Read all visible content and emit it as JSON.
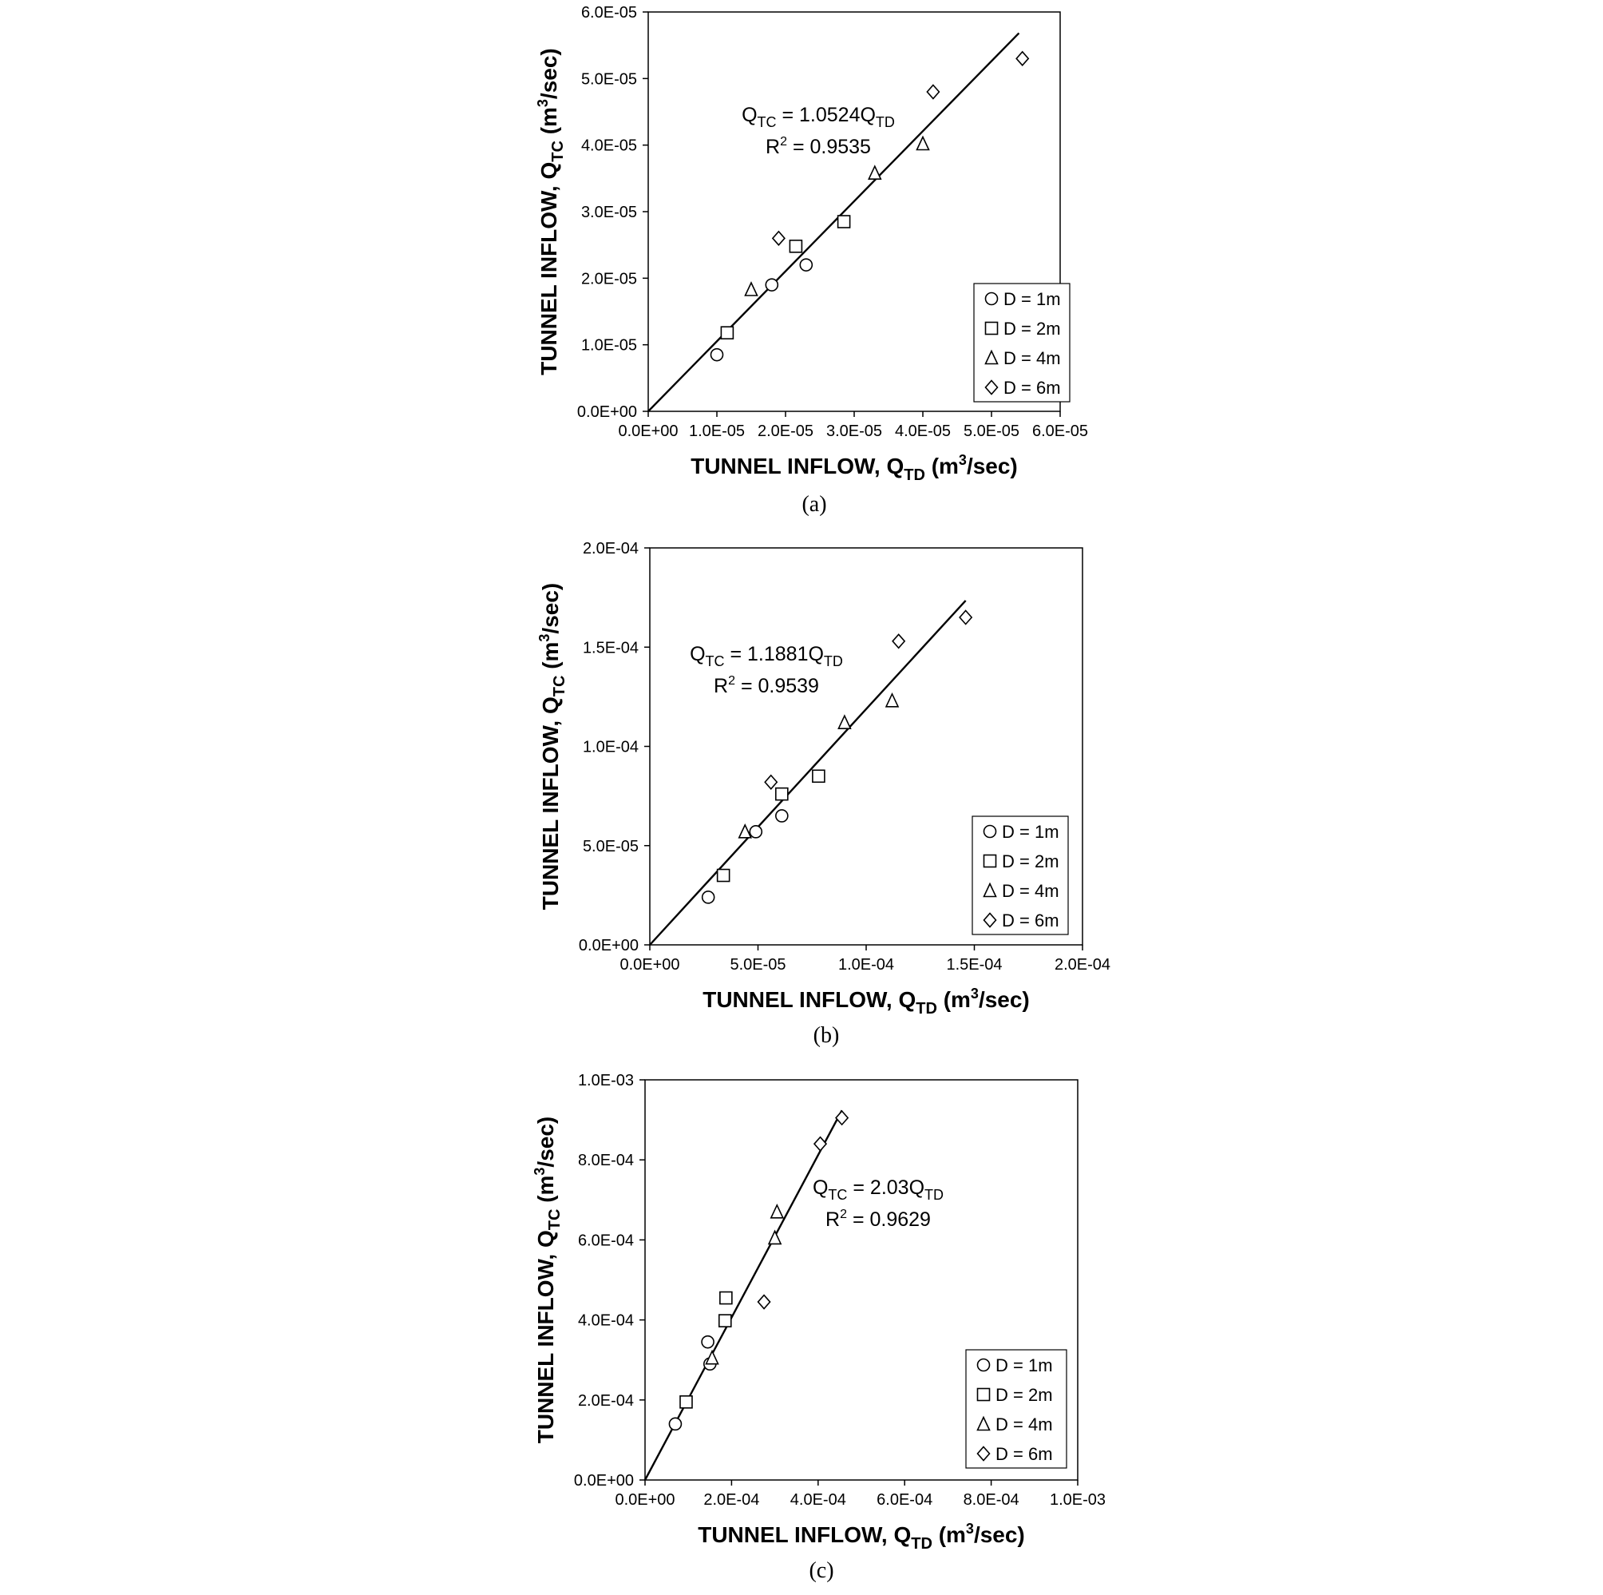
{
  "figure": {
    "legend_labels": [
      "D = 1m",
      "D = 2m",
      "D = 4m",
      "D = 6m"
    ],
    "marker_shapes": [
      "circle",
      "square",
      "triangle",
      "diamond"
    ]
  },
  "chart_data": [
    {
      "type": "scatter",
      "caption": "(a)",
      "xlabel": "TUNNEL INFLOW, Q_TD (m³/sec)",
      "xlabel_parts": {
        "pre": "TUNNEL INFLOW, Q",
        "sub": "TD",
        "post": " (m",
        "sup": "3",
        "end": "/sec)"
      },
      "ylabel": "TUNNEL INFLOW, Q_TC (m³/sec)",
      "ylabel_parts": {
        "pre": "TUNNEL INFLOW, Q",
        "sub": "TC",
        "post": " (m",
        "sup": "3",
        "end": "/sec)"
      },
      "xlim": [
        0,
        6e-05
      ],
      "ylim": [
        0,
        6e-05
      ],
      "xticks": [
        0,
        1e-05,
        2e-05,
        3e-05,
        4e-05,
        5e-05,
        6e-05
      ],
      "xtick_labels": [
        "0.0E+00",
        "1.0E-05",
        "2.0E-05",
        "3.0E-05",
        "4.0E-05",
        "5.0E-05",
        "6.0E-05"
      ],
      "yticks": [
        0,
        1e-05,
        2e-05,
        3e-05,
        4e-05,
        5e-05,
        6e-05
      ],
      "ytick_labels": [
        "0.0E+00",
        "1.0E-05",
        "2.0E-05",
        "3.0E-05",
        "4.0E-05",
        "5.0E-05",
        "6.0E-05"
      ],
      "grid": false,
      "legend_position": "bottom-right",
      "series": [
        {
          "name": "D = 1m",
          "marker": "circle",
          "x": [
            1e-05,
            1.8e-05,
            2.3e-05
          ],
          "y": [
            8.5e-06,
            1.9e-05,
            2.2e-05
          ]
        },
        {
          "name": "D = 2m",
          "marker": "square",
          "x": [
            1.15e-05,
            2.15e-05,
            2.85e-05
          ],
          "y": [
            1.18e-05,
            2.48e-05,
            2.85e-05
          ]
        },
        {
          "name": "D = 4m",
          "marker": "triangle",
          "x": [
            1.5e-05,
            3.3e-05,
            4e-05
          ],
          "y": [
            1.83e-05,
            3.58e-05,
            4.02e-05
          ]
        },
        {
          "name": "D = 6m",
          "marker": "diamond",
          "x": [
            1.9e-05,
            4.15e-05,
            5.45e-05
          ],
          "y": [
            2.6e-05,
            4.8e-05,
            5.3e-05
          ]
        }
      ],
      "trendline": {
        "slope": 1.0524,
        "x_end": 5.4e-05
      },
      "equation": {
        "pre": "Q",
        "sub1": "TC",
        "mid": " = 1.0524Q",
        "sub2": "TD"
      },
      "r2": {
        "pre": "R",
        "sup": "2",
        "post": " = 0.9535"
      }
    },
    {
      "type": "scatter",
      "caption": "(b)",
      "xlabel": "TUNNEL INFLOW, Q_TD (m³/sec)",
      "xlabel_parts": {
        "pre": "TUNNEL INFLOW, Q",
        "sub": "TD",
        "post": " (m",
        "sup": "3",
        "end": "/sec)"
      },
      "ylabel": "TUNNEL INFLOW, Q_TC (m³/sec)",
      "ylabel_parts": {
        "pre": "TUNNEL INFLOW, Q",
        "sub": "TC",
        "post": " (m",
        "sup": "3",
        "end": "/sec)"
      },
      "xlim": [
        0,
        0.0002
      ],
      "ylim": [
        0,
        0.0002
      ],
      "xticks": [
        0,
        5e-05,
        0.0001,
        0.00015,
        0.0002
      ],
      "xtick_labels": [
        "0.0E+00",
        "5.0E-05",
        "1.0E-04",
        "1.5E-04",
        "2.0E-04"
      ],
      "yticks": [
        0,
        5e-05,
        0.0001,
        0.00015,
        0.0002
      ],
      "ytick_labels": [
        "0.0E+00",
        "5.0E-05",
        "1.0E-04",
        "1.5E-04",
        "2.0E-04"
      ],
      "grid": false,
      "legend_position": "bottom-right",
      "series": [
        {
          "name": "D = 1m",
          "marker": "circle",
          "x": [
            2.7e-05,
            4.9e-05,
            6.1e-05
          ],
          "y": [
            2.4e-05,
            5.7e-05,
            6.5e-05
          ]
        },
        {
          "name": "D = 2m",
          "marker": "square",
          "x": [
            3.4e-05,
            6.1e-05,
            7.8e-05
          ],
          "y": [
            3.5e-05,
            7.6e-05,
            8.5e-05
          ]
        },
        {
          "name": "D = 4m",
          "marker": "triangle",
          "x": [
            4.4e-05,
            9e-05,
            0.000112
          ],
          "y": [
            5.7e-05,
            0.000112,
            0.000123
          ]
        },
        {
          "name": "D = 6m",
          "marker": "diamond",
          "x": [
            5.6e-05,
            0.000115,
            0.000146
          ],
          "y": [
            8.2e-05,
            0.000153,
            0.000165
          ]
        }
      ],
      "trendline": {
        "slope": 1.1881,
        "x_end": 0.000146
      },
      "equation": {
        "pre": "Q",
        "sub1": "TC",
        "mid": " = 1.1881Q",
        "sub2": "TD"
      },
      "r2": {
        "pre": "R",
        "sup": "2",
        "post": " = 0.9539"
      }
    },
    {
      "type": "scatter",
      "caption": "(c)",
      "xlabel": "TUNNEL INFLOW, Q_TD (m³/sec)",
      "xlabel_parts": {
        "pre": "TUNNEL INFLOW, Q",
        "sub": "TD",
        "post": " (m",
        "sup": "3",
        "end": "/sec)"
      },
      "ylabel": "TUNNEL INFLOW, Q_TC (m³/sec)",
      "ylabel_parts": {
        "pre": "TUNNEL INFLOW, Q",
        "sub": "TC",
        "post": " (m",
        "sup": "3",
        "end": "/sec)"
      },
      "xlim": [
        0,
        0.001
      ],
      "ylim": [
        0,
        0.001
      ],
      "xticks": [
        0,
        0.0002,
        0.0004,
        0.0006,
        0.0008,
        0.001
      ],
      "xtick_labels": [
        "0.0E+00",
        "2.0E-04",
        "4.0E-04",
        "6.0E-04",
        "8.0E-04",
        "1.0E-03"
      ],
      "yticks": [
        0,
        0.0002,
        0.0004,
        0.0006,
        0.0008,
        0.001
      ],
      "ytick_labels": [
        "0.0E+00",
        "2.0E-04",
        "4.0E-04",
        "6.0E-04",
        "8.0E-04",
        "1.0E-03"
      ],
      "grid": false,
      "legend_position": "bottom-right",
      "series": [
        {
          "name": "D = 1m",
          "marker": "circle",
          "x": [
            7e-05,
            0.000145,
            0.00015
          ],
          "y": [
            0.00014,
            0.000345,
            0.00029
          ]
        },
        {
          "name": "D = 2m",
          "marker": "square",
          "x": [
            9.5e-05,
            0.000185,
            0.000187
          ],
          "y": [
            0.000195,
            0.000398,
            0.000455
          ]
        },
        {
          "name": "D = 4m",
          "marker": "triangle",
          "x": [
            0.000155,
            0.0003,
            0.000305
          ],
          "y": [
            0.000305,
            0.000605,
            0.00067
          ]
        },
        {
          "name": "D = 6m",
          "marker": "diamond",
          "x": [
            0.000275,
            0.000405,
            0.000455
          ],
          "y": [
            0.000445,
            0.00084,
            0.000905
          ]
        }
      ],
      "trendline": {
        "slope": 2.03,
        "x_end": 0.000455
      },
      "equation": {
        "pre": "Q",
        "sub1": "TC",
        "mid": " = 2.03Q",
        "sub2": "TD"
      },
      "r2": {
        "pre": "R",
        "sup": "2",
        "post": " = 0.9629"
      }
    }
  ]
}
